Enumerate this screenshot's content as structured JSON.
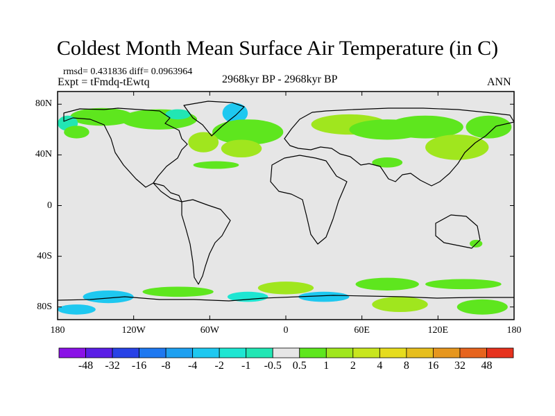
{
  "title": "Coldest Month Mean Surface Air Temperature (in C)",
  "stats": {
    "line1": "rmsd= 0.431836 diff= 0.0963964",
    "line2": "Expt = tFmdq-tEwtq"
  },
  "period": "2968kyr BP - 2968kyr BP",
  "season": "ANN",
  "axes": {
    "y": [
      {
        "label": "80N",
        "lat": 80
      },
      {
        "label": "40N",
        "lat": 40
      },
      {
        "label": "0",
        "lat": 0
      },
      {
        "label": "40S",
        "lat": -40
      },
      {
        "label": "80S",
        "lat": -80
      }
    ],
    "x": [
      {
        "label": "180",
        "lon": -180
      },
      {
        "label": "120W",
        "lon": -120
      },
      {
        "label": "60W",
        "lon": -60
      },
      {
        "label": "0",
        "lon": 0
      },
      {
        "label": "60E",
        "lon": 60
      },
      {
        "label": "120E",
        "lon": 120
      },
      {
        "label": "180",
        "lon": 180
      }
    ],
    "lon_range": [
      -180,
      180
    ],
    "lat_range": [
      -90,
      90
    ]
  },
  "colorbar": {
    "colors": [
      "#8a12e6",
      "#5a1ee6",
      "#2842e6",
      "#1e78f0",
      "#1ea0f0",
      "#1ec8f0",
      "#1ee6d2",
      "#22e6b4",
      "#e6e6e6",
      "#5ee61e",
      "#a0e61e",
      "#c8e61e",
      "#e6dc1e",
      "#e6be1e",
      "#e6961e",
      "#e6641e",
      "#e6321e"
    ],
    "labels": [
      "-48",
      "-32",
      "-16",
      "-8",
      "-4",
      "-2",
      "-1",
      "-0.5",
      "0.5",
      "1",
      "2",
      "4",
      "8",
      "16",
      "32",
      "48"
    ]
  },
  "map": {
    "background_color": "#e6e6e6",
    "regions": [
      {
        "lon": -145,
        "lat": 70,
        "rx": 25,
        "ry": 7,
        "color": "#5ee61e"
      },
      {
        "lon": -100,
        "lat": 68,
        "rx": 30,
        "ry": 8,
        "color": "#5ee61e"
      },
      {
        "lon": -85,
        "lat": 72,
        "rx": 10,
        "ry": 4,
        "color": "#22e6b4"
      },
      {
        "lon": -40,
        "lat": 73,
        "rx": 10,
        "ry": 8,
        "color": "#1ec8f0"
      },
      {
        "lon": -30,
        "lat": 58,
        "rx": 28,
        "ry": 10,
        "color": "#5ee61e"
      },
      {
        "lon": -35,
        "lat": 45,
        "rx": 16,
        "ry": 7,
        "color": "#a0e61e"
      },
      {
        "lon": -65,
        "lat": 50,
        "rx": 12,
        "ry": 8,
        "color": "#a0e61e"
      },
      {
        "lon": -55,
        "lat": 32,
        "rx": 18,
        "ry": 3,
        "color": "#5ee61e"
      },
      {
        "lon": -172,
        "lat": 65,
        "rx": 8,
        "ry": 6,
        "color": "#22e6b4"
      },
      {
        "lon": -165,
        "lat": 58,
        "rx": 10,
        "ry": 5,
        "color": "#5ee61e"
      },
      {
        "lon": 50,
        "lat": 64,
        "rx": 30,
        "ry": 8,
        "color": "#a0e61e"
      },
      {
        "lon": 80,
        "lat": 60,
        "rx": 30,
        "ry": 8,
        "color": "#5ee61e"
      },
      {
        "lon": 110,
        "lat": 62,
        "rx": 30,
        "ry": 9,
        "color": "#5ee61e"
      },
      {
        "lon": 135,
        "lat": 46,
        "rx": 25,
        "ry": 10,
        "color": "#a0e61e"
      },
      {
        "lon": 160,
        "lat": 62,
        "rx": 18,
        "ry": 9,
        "color": "#5ee61e"
      },
      {
        "lon": 80,
        "lat": 34,
        "rx": 12,
        "ry": 4,
        "color": "#5ee61e"
      },
      {
        "lon": -85,
        "lat": -68,
        "rx": 28,
        "ry": 4,
        "color": "#5ee61e"
      },
      {
        "lon": 0,
        "lat": -65,
        "rx": 22,
        "ry": 5,
        "color": "#a0e61e"
      },
      {
        "lon": 80,
        "lat": -62,
        "rx": 25,
        "ry": 5,
        "color": "#5ee61e"
      },
      {
        "lon": 140,
        "lat": -62,
        "rx": 30,
        "ry": 4,
        "color": "#5ee61e"
      },
      {
        "lon": -140,
        "lat": -72,
        "rx": 20,
        "ry": 5,
        "color": "#1ec8f0"
      },
      {
        "lon": -30,
        "lat": -72,
        "rx": 16,
        "ry": 4,
        "color": "#1ee6d2"
      },
      {
        "lon": 30,
        "lat": -72,
        "rx": 20,
        "ry": 4,
        "color": "#1ec8f0"
      },
      {
        "lon": 90,
        "lat": -78,
        "rx": 22,
        "ry": 6,
        "color": "#a0e61e"
      },
      {
        "lon": 155,
        "lat": -80,
        "rx": 20,
        "ry": 6,
        "color": "#5ee61e"
      },
      {
        "lon": -165,
        "lat": -82,
        "rx": 15,
        "ry": 4,
        "color": "#1ec8f0"
      },
      {
        "lon": 150,
        "lat": -30,
        "rx": 5,
        "ry": 3,
        "color": "#5ee61e"
      }
    ]
  }
}
